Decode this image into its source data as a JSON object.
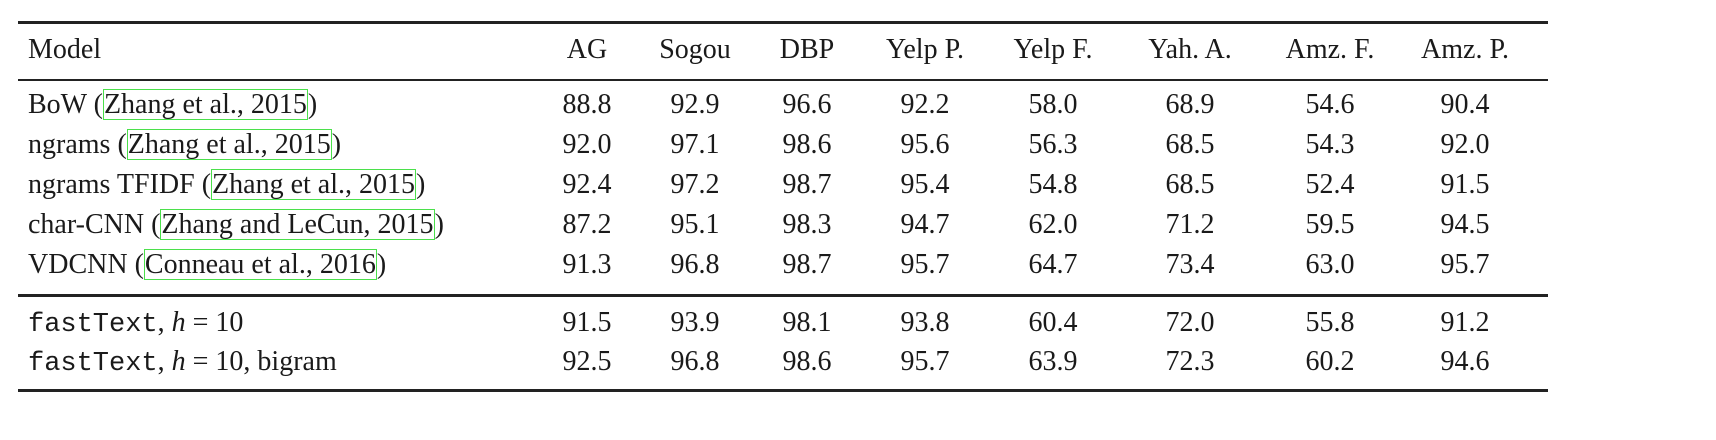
{
  "table": {
    "columns": [
      "Model",
      "AG",
      "Sogou",
      "DBP",
      "Yelp P.",
      "Yelp F.",
      "Yah. A.",
      "Amz. F.",
      "Amz. P."
    ],
    "groups": [
      [
        {
          "model": {
            "name": "BoW",
            "citation": "Zhang et al., 2015"
          },
          "values": [
            "88.8",
            "92.9",
            "96.6",
            "92.2",
            "58.0",
            "68.9",
            "54.6",
            "90.4"
          ]
        },
        {
          "model": {
            "name": "ngrams",
            "citation": "Zhang et al., 2015"
          },
          "values": [
            "92.0",
            "97.1",
            "98.6",
            "95.6",
            "56.3",
            "68.5",
            "54.3",
            "92.0"
          ]
        },
        {
          "model": {
            "name": "ngrams TFIDF",
            "citation": "Zhang et al., 2015"
          },
          "values": [
            "92.4",
            "97.2",
            "98.7",
            "95.4",
            "54.8",
            "68.5",
            "52.4",
            "91.5"
          ]
        },
        {
          "model": {
            "name": "char-CNN",
            "citation": "Zhang and LeCun, 2015"
          },
          "values": [
            "87.2",
            "95.1",
            "98.3",
            "94.7",
            "62.0",
            "71.2",
            "59.5",
            "94.5"
          ]
        },
        {
          "model": {
            "name": "VDCNN",
            "citation": "Conneau et al., 2016"
          },
          "values": [
            "91.3",
            "96.8",
            "98.7",
            "95.7",
            "64.7",
            "73.4",
            "63.0",
            "95.7"
          ]
        }
      ],
      [
        {
          "model": {
            "code": "fastText",
            "var": "h",
            "eq": " = 10",
            "suffix": ""
          },
          "values": [
            "91.5",
            "93.9",
            "98.1",
            "93.8",
            "60.4",
            "72.0",
            "55.8",
            "91.2"
          ]
        },
        {
          "model": {
            "code": "fastText",
            "var": "h",
            "eq": " = 10",
            "suffix": ", bigram"
          },
          "values": [
            "92.5",
            "96.8",
            "98.6",
            "95.7",
            "63.9",
            "72.3",
            "60.2",
            "94.6"
          ]
        }
      ]
    ]
  }
}
